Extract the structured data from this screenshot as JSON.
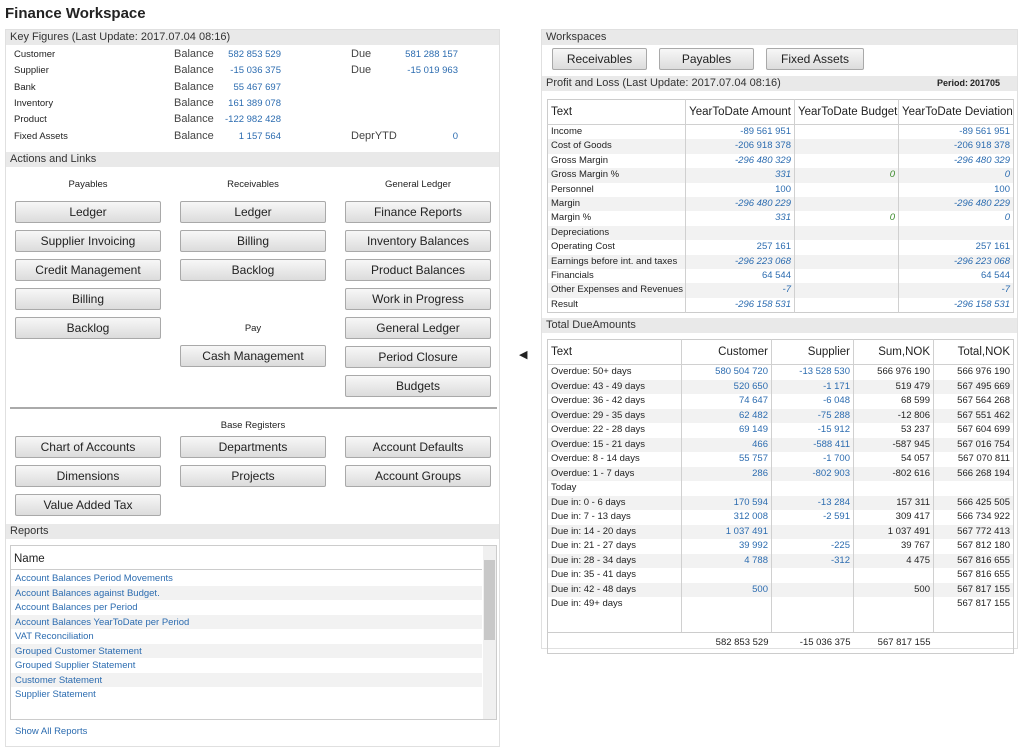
{
  "title": "Finance Workspace",
  "key_figures": {
    "title": "Key Figures (Last Update: 2017.07.04 08:16)",
    "rows": [
      [
        "Customer",
        "Balance",
        "582 853 529",
        "Due",
        "581 288 157"
      ],
      [
        "Supplier",
        "Balance",
        "-15 036 375",
        "Due",
        "-15 019 963"
      ],
      [
        "Bank",
        "Balance",
        "55 467 697"
      ],
      [
        "Inventory",
        "Balance",
        "161 389 078"
      ],
      [
        "Product",
        "Balance",
        "-122 982 428"
      ],
      [
        "Fixed Assets",
        "Balance",
        "1 157 564",
        "DeprYTD",
        "0"
      ]
    ]
  },
  "actions": {
    "title": "Actions and Links",
    "columns": [
      {
        "heading": "Payables",
        "buttons": [
          "Ledger",
          "Supplier Invoicing",
          "Credit Management",
          "Billing",
          "Backlog"
        ]
      },
      {
        "heading": "Receivables",
        "buttons": [
          "Ledger",
          "Billing",
          "Backlog"
        ],
        "subheading": "Pay",
        "sub_buttons": [
          "Cash Management"
        ]
      },
      {
        "heading": "General Ledger",
        "buttons": [
          "Finance Reports",
          "Inventory Balances",
          "Product Balances",
          "Work in Progress",
          "General Ledger",
          "Period Closure",
          "Budgets"
        ]
      }
    ],
    "base_registers": {
      "heading": "Base Registers",
      "buttons": [
        [
          "Chart of Accounts",
          "Departments",
          "Account Defaults"
        ],
        [
          "Dimensions",
          "Projects",
          "Account Groups"
        ],
        [
          "Value Added Tax"
        ]
      ]
    }
  },
  "reports": {
    "title": "Reports",
    "column": "Name",
    "items": [
      "Account Balances Period Movements",
      "Account Balances against Budget.",
      "Account Balances per Period",
      "Account Balances YearToDate per Period",
      "VAT Reconciliation",
      "Grouped Customer Statement",
      "Grouped Supplier Statement",
      "Customer Statement",
      "Supplier Statement"
    ],
    "footer": "Show All Reports"
  },
  "workspaces": {
    "title": "Workspaces",
    "buttons": [
      "Receivables",
      "Payables",
      "Fixed Assets"
    ]
  },
  "profit_loss": {
    "title": "Profit and Loss (Last Update: 2017.07.04 08:16)",
    "period_label": "Period:",
    "period": "201705",
    "columns": [
      "Text",
      "YearToDate Amount",
      "YearToDate Budget",
      "YearToDate Deviation"
    ],
    "rows": [
      [
        "Income",
        "-89 561 951",
        null,
        "-89 561 951"
      ],
      [
        "Cost of Goods",
        "-206 918 378",
        null,
        "-206 918 378"
      ],
      [
        "Gross Margin",
        "-296 480 329",
        null,
        "-296 480 329"
      ],
      [
        "Gross Margin %",
        "331",
        "0",
        "0"
      ],
      [
        "Personnel",
        "100",
        null,
        "100"
      ],
      [
        "Margin",
        "-296 480 229",
        null,
        "-296 480 229"
      ],
      [
        "Margin %",
        "331",
        "0",
        "0"
      ],
      [
        "Depreciations",
        null,
        null,
        null
      ],
      [
        "Operating Cost",
        "257 161",
        null,
        "257 161"
      ],
      [
        "Earnings before int. and taxes",
        "-296 223 068",
        null,
        "-296 223 068"
      ],
      [
        "Financials",
        "64 544",
        null,
        "64 544"
      ],
      [
        "Other Expenses and Revenues",
        "-7",
        null,
        "-7"
      ],
      [
        "Result",
        "-296 158 531",
        null,
        "-296 158 531"
      ]
    ]
  },
  "due_amounts": {
    "title": "Total DueAmounts",
    "columns": [
      "Text",
      "Customer",
      "Supplier",
      "Sum,NOK",
      "Total,NOK"
    ],
    "rows": [
      [
        "Overdue: 50+ days",
        "580 504 720",
        "-13 528 530",
        "566 976 190",
        "566 976 190"
      ],
      [
        "Overdue: 43 - 49 days",
        "520 650",
        "-1 171",
        "519 479",
        "567 495 669"
      ],
      [
        "Overdue: 36 - 42 days",
        "74 647",
        "-6 048",
        "68 599",
        "567 564 268"
      ],
      [
        "Overdue: 29 - 35 days",
        "62 482",
        "-75 288",
        "-12 806",
        "567 551 462"
      ],
      [
        "Overdue: 22 - 28 days",
        "69 149",
        "-15 912",
        "53 237",
        "567 604 699"
      ],
      [
        "Overdue: 15 - 21 days",
        "466",
        "-588 411",
        "-587 945",
        "567 016 754"
      ],
      [
        "Overdue: 8 - 14 days",
        "55 757",
        "-1 700",
        "54 057",
        "567 070 811"
      ],
      [
        "Overdue: 1 - 7 days",
        "286",
        "-802 903",
        "-802 616",
        "566 268 194"
      ],
      [
        "Today",
        null,
        null,
        null,
        null
      ],
      [
        "Due in: 0 - 6 days",
        "170 594",
        "-13 284",
        "157 311",
        "566 425 505"
      ],
      [
        "Due in: 7 - 13 days",
        "312 008",
        "-2 591",
        "309 417",
        "566 734 922"
      ],
      [
        "Due in: 14 - 20 days",
        "1 037 491",
        null,
        "1 037 491",
        "567 772 413"
      ],
      [
        "Due in: 21 - 27 days",
        "39 992",
        "-225",
        "39 767",
        "567 812 180"
      ],
      [
        "Due in: 28 - 34 days",
        "4 788",
        "-312",
        "4 475",
        "567 816 655"
      ],
      [
        "Due in: 35 - 41 days",
        null,
        null,
        null,
        "567 816 655"
      ],
      [
        "Due in: 42 - 48 days",
        "500",
        null,
        "500",
        "567 817 155"
      ],
      [
        "Due in: 49+ days",
        null,
        null,
        null,
        "567 817 155"
      ]
    ],
    "totals": [
      null,
      "582 853 529",
      "-15 036 375",
      "567 817 155",
      null
    ]
  }
}
